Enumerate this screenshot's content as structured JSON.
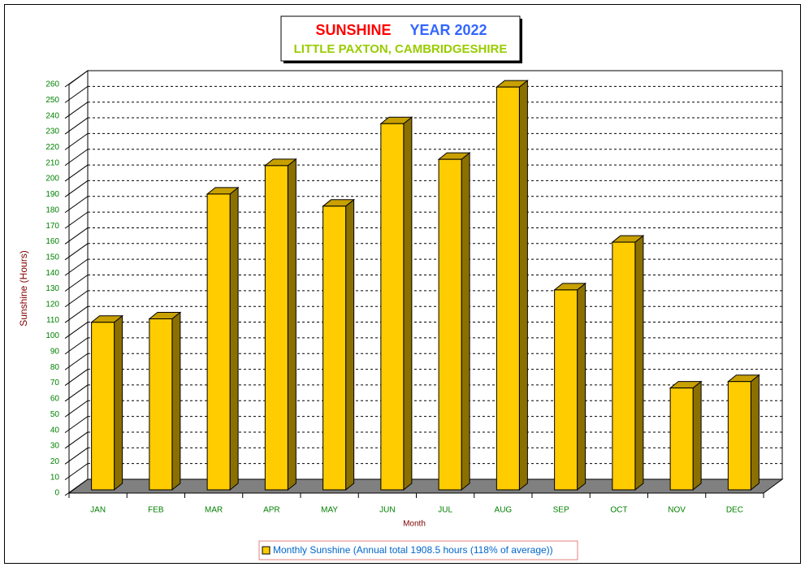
{
  "chart_data": {
    "type": "bar3d",
    "title": [
      "SUNSHINE",
      "YEAR 2022"
    ],
    "subtitle": "LITTLE PAXTON, CAMBRIDGESHIRE",
    "x_label": "Month",
    "y_label": "Sunshine (Hours)",
    "categories": [
      "JAN",
      "FEB",
      "MAR",
      "APR",
      "MAY",
      "JUN",
      "JUL",
      "AUG",
      "SEP",
      "OCT",
      "NOV",
      "DEC"
    ],
    "series": [
      {
        "name": "Monthly Sunshine (Annual total 1908.5 hours (118% of average))",
        "color": "#ffcc00",
        "values": [
          106.6,
          108.8,
          188.2,
          206.3,
          180.5,
          233.0,
          210.3,
          256.3,
          127.2,
          157.6,
          64.8,
          68.9
        ]
      }
    ],
    "ylim": [
      0,
      260
    ],
    "yticks": [
      0,
      10,
      20,
      30,
      40,
      50,
      60,
      70,
      80,
      90,
      100,
      110,
      120,
      130,
      140,
      150,
      160,
      170,
      180,
      190,
      200,
      210,
      220,
      230,
      240,
      250,
      260
    ],
    "grid": true,
    "legend": "bottom"
  }
}
